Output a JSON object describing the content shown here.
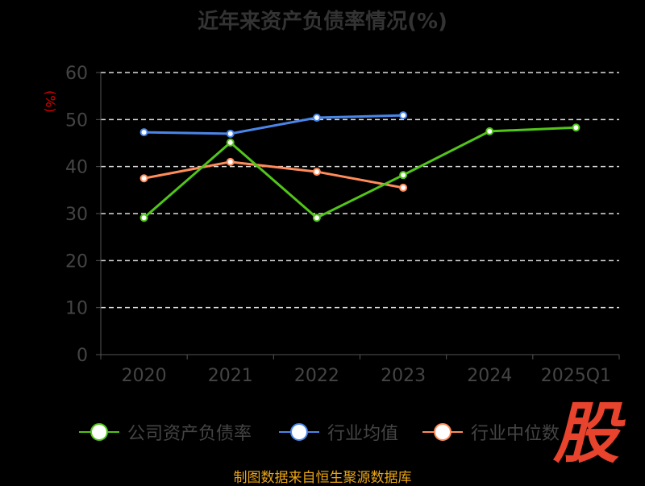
{
  "chart_data": {
    "type": "line",
    "title": "近年来资产负债率情况(%)",
    "ylabel": "(%)",
    "categories": [
      "2020",
      "2021",
      "2022",
      "2023",
      "2024",
      "2025Q1"
    ],
    "ylim": [
      0,
      60
    ],
    "yticks": [
      0,
      10,
      20,
      30,
      40,
      50,
      60
    ],
    "grid": true,
    "legend_placement": "bottom",
    "series": [
      {
        "name": "公司资产负债率",
        "color": "#52c41a",
        "values": [
          29.1,
          45.1,
          29.1,
          38.2,
          47.5,
          48.3
        ]
      },
      {
        "name": "行业均值",
        "color": "#4a86e8",
        "values": [
          47.3,
          47.0,
          50.4,
          50.9,
          null,
          null
        ]
      },
      {
        "name": "行业中位数",
        "color": "#ff8c5a",
        "values": [
          37.5,
          41.0,
          38.9,
          35.5,
          null,
          null
        ]
      }
    ]
  },
  "footer": "制图数据来自恒生聚源数据库",
  "logo": "股"
}
